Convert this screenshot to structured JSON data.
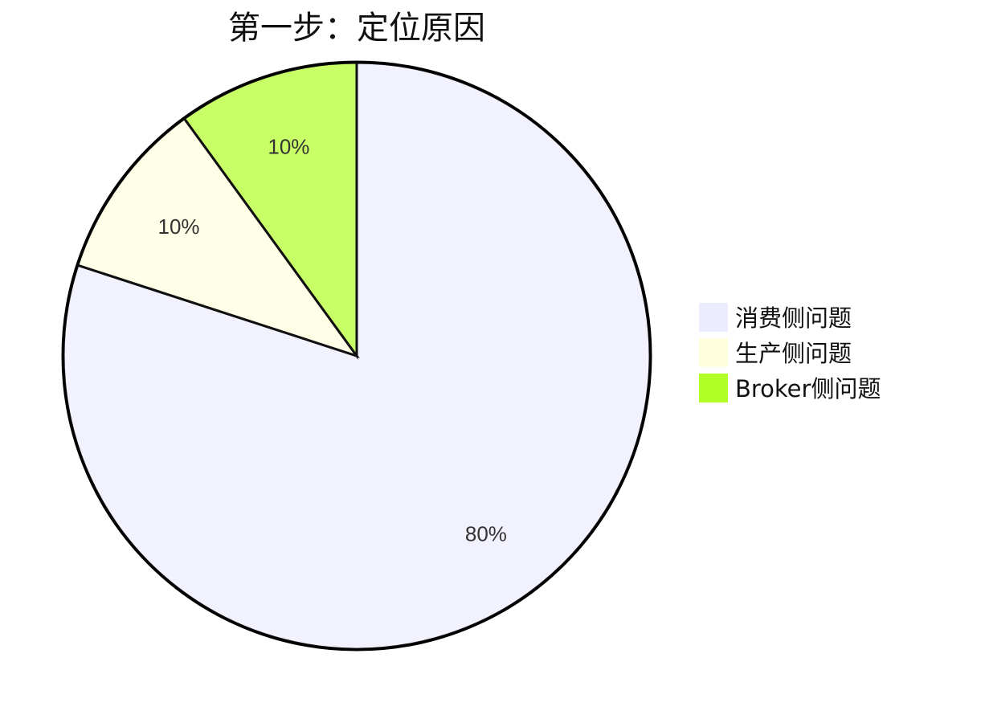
{
  "chart_data": {
    "type": "pie",
    "title": "第一步：定位原因",
    "slices": [
      {
        "label": "消费侧问题",
        "value": 80,
        "display": "80%",
        "color": "#ECECFF"
      },
      {
        "label": "生产侧问题",
        "value": 10,
        "display": "10%",
        "color": "#FFFFDE"
      },
      {
        "label": "Broker侧问题",
        "value": 10,
        "display": "10%",
        "color": "#B0FF26"
      }
    ],
    "legend_position": "right",
    "start_angle": "12 o'clock, clockwise"
  }
}
